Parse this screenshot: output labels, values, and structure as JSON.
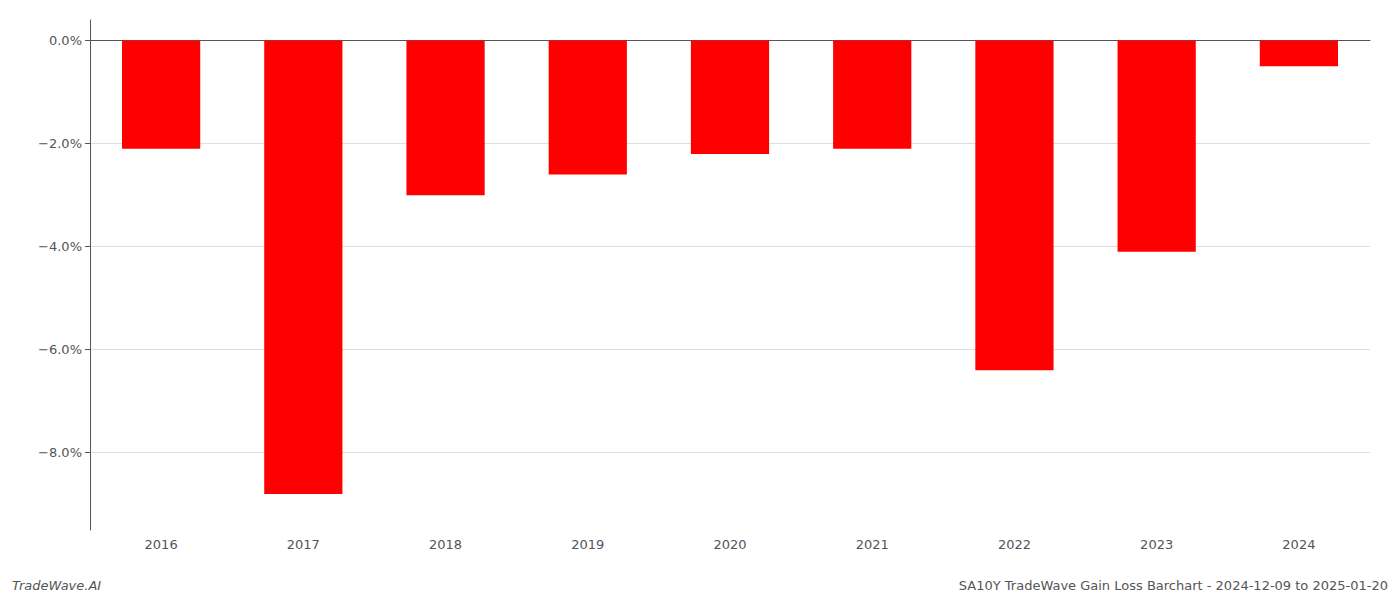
{
  "chart_data": {
    "type": "bar",
    "categories": [
      "2016",
      "2017",
      "2018",
      "2019",
      "2020",
      "2021",
      "2022",
      "2023",
      "2024"
    ],
    "values": [
      -0.021,
      -0.088,
      -0.03,
      -0.026,
      -0.022,
      -0.021,
      -0.064,
      -0.041,
      -0.005
    ],
    "color": "#ff0000",
    "ylim": [
      -0.095,
      0.004
    ],
    "yticks": [
      {
        "value": 0.0,
        "label": "0.0%"
      },
      {
        "value": -0.02,
        "label": "−2.0%"
      },
      {
        "value": -0.04,
        "label": "−4.0%"
      },
      {
        "value": -0.06,
        "label": "−6.0%"
      },
      {
        "value": -0.08,
        "label": "−8.0%"
      }
    ],
    "grid": true,
    "annotations": [
      "TradeWave.AI",
      "SA10Y TradeWave Gain Loss Barchart - 2024-12-09 to 2025-01-20"
    ]
  }
}
